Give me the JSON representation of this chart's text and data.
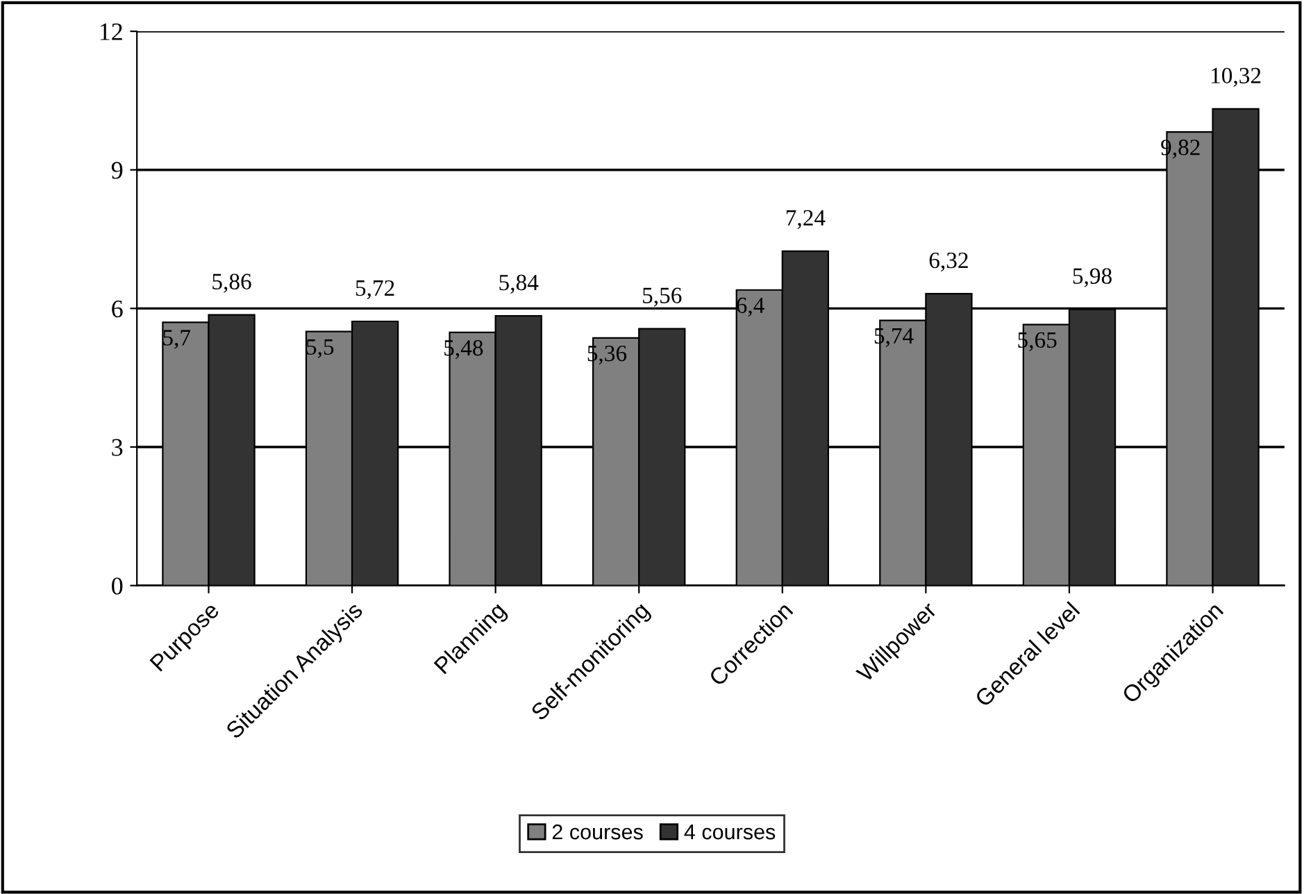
{
  "chart_data": {
    "type": "bar",
    "categories": [
      "Purpose",
      "Situation Analysis",
      "Planning",
      "Self-monitoring",
      "Correction",
      "Willpower",
      "General level",
      "Organization"
    ],
    "series": [
      {
        "name": "2 courses",
        "color": "#808080",
        "values": [
          5.7,
          5.5,
          5.48,
          5.36,
          6.4,
          5.74,
          5.65,
          9.82
        ],
        "value_labels": [
          "5,7",
          "5,5",
          "5,48",
          "5,36",
          "6,4",
          "5,74",
          "5,65",
          "9,82"
        ]
      },
      {
        "name": "4 courses",
        "color": "#333333",
        "values": [
          5.86,
          5.72,
          5.84,
          5.56,
          7.24,
          6.32,
          5.98,
          10.32
        ],
        "value_labels": [
          "5,86",
          "5,72",
          "5,84",
          "5,56",
          "7,24",
          "6,32",
          "5,98",
          "10,32"
        ]
      }
    ],
    "ylim": [
      0,
      12
    ],
    "yticks": [
      0,
      3,
      6,
      9,
      12
    ],
    "grid": "y",
    "legend": "bottom"
  }
}
